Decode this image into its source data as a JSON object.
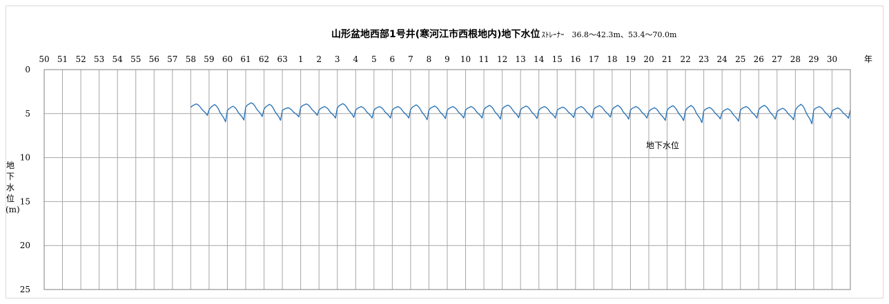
{
  "chart_data": {
    "type": "line",
    "title": "山形盆地西部1号井(寒河江市西根地内)地下水位",
    "subtitle": "ｽﾄﾚｰﾅｰ　36.8～42.3m、53.4～70.0m",
    "ylabel": "地下水位(m)",
    "xunit": "年",
    "ylim": [
      0,
      25
    ],
    "y_inverted": true,
    "yticks": [
      0,
      5,
      10,
      15,
      20,
      25
    ],
    "year_labels": [
      "50",
      "51",
      "52",
      "53",
      "54",
      "55",
      "56",
      "57",
      "58",
      "59",
      "60",
      "61",
      "62",
      "63",
      "1",
      "2",
      "3",
      "4",
      "5",
      "6",
      "7",
      "8",
      "9",
      "10",
      "11",
      "12",
      "13",
      "14",
      "15",
      "16",
      "17",
      "18",
      "19",
      "20",
      "21",
      "22",
      "23",
      "24",
      "25",
      "26",
      "27",
      "28",
      "29",
      "30"
    ],
    "grid": true,
    "legend": "inline",
    "series": [
      {
        "name": "地下水位",
        "color": "#2e75b6",
        "start_year_index": 8,
        "cycle_base": [
          4.3,
          4.1,
          4.0,
          3.9,
          4.0,
          4.2,
          4.5,
          4.7,
          4.9,
          5.2
        ],
        "cycle_amplitude_scale": [
          1.0,
          1.5,
          1.2,
          1.2,
          1.4,
          0.8,
          1.0,
          1.0,
          1.2,
          1.0,
          1.0,
          1.0,
          1.3,
          1.1,
          1.0,
          1.0,
          1.2,
          1.1,
          1.1,
          1.0,
          0.9,
          1.0,
          1.0,
          1.2,
          1.0,
          1.1,
          1.3,
          1.5,
          1.0,
          1.1,
          1.0,
          1.2,
          1.0,
          1.7,
          1.0,
          0.9,
          1.1,
          1.4,
          1.0,
          1.0,
          1.0
        ],
        "cycle_offset": [
          0.0,
          0.4,
          0.4,
          0.0,
          0.3,
          0.3,
          0.0,
          0.3,
          0.1,
          0.3,
          0.3,
          0.3,
          0.3,
          0.3,
          0.3,
          0.3,
          0.3,
          0.2,
          0.3,
          0.3,
          0.3,
          0.3,
          0.2,
          0.3,
          0.3,
          0.5,
          0.4,
          0.5,
          0.4,
          0.6,
          0.3,
          0.3,
          0.5,
          0.5,
          0.3,
          0.4,
          0.3,
          0.4,
          0.3,
          0.3,
          0.2
        ]
      }
    ]
  }
}
